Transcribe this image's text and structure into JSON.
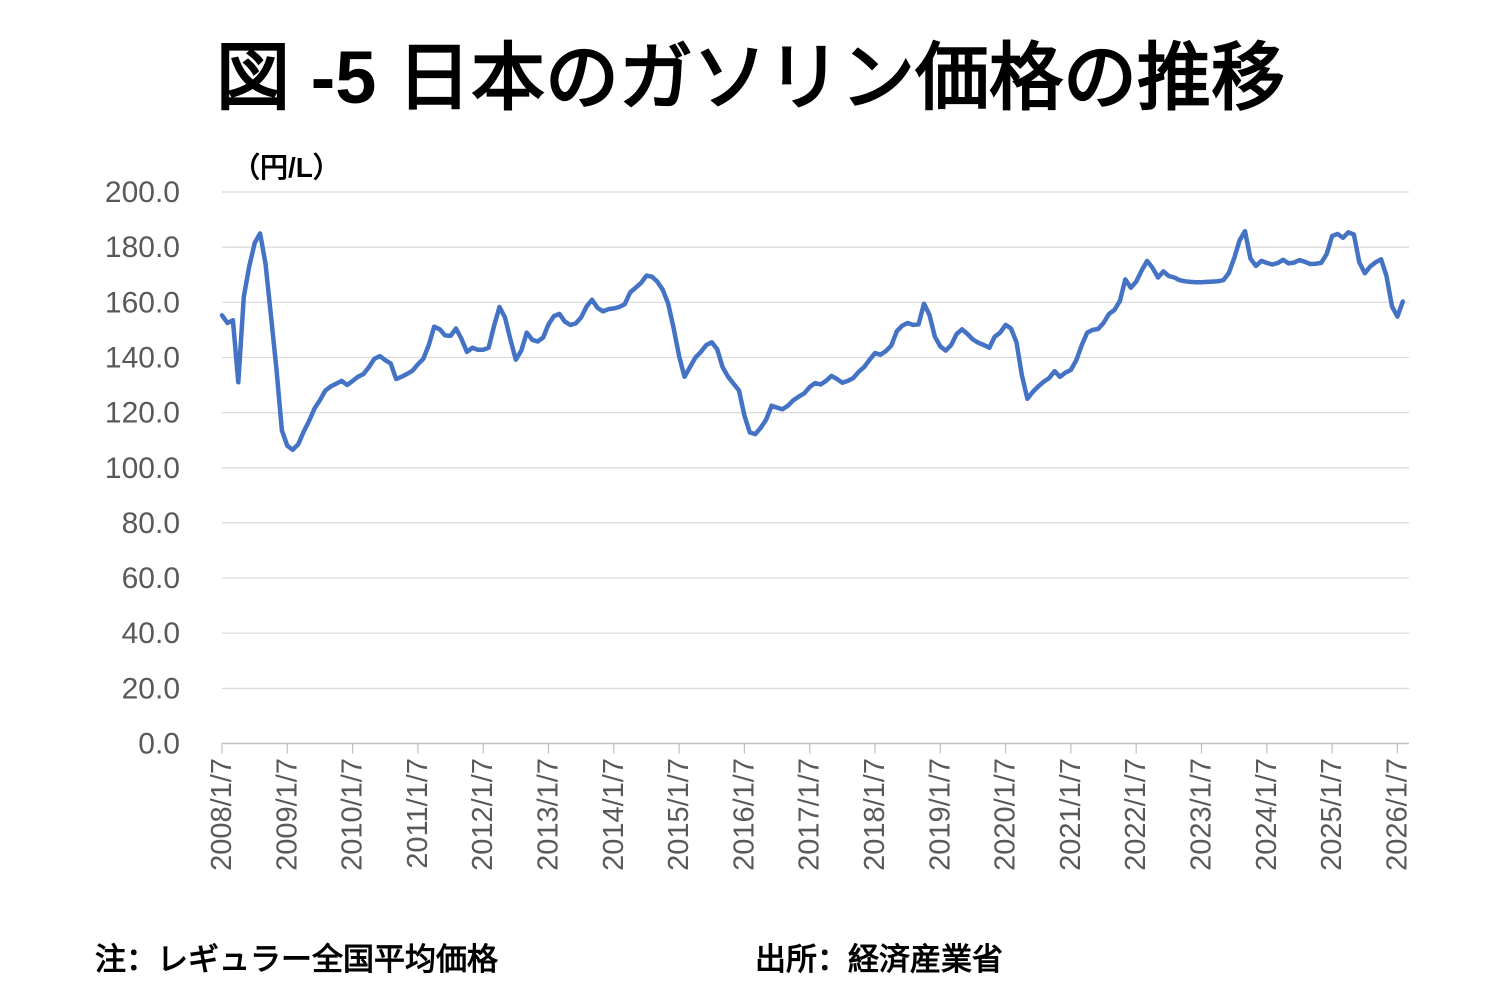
{
  "title": "図 -5 日本のガソリン価格の推移",
  "unit_label": "（円/L）",
  "notes": {
    "note": "注：レギュラー全国平均価格",
    "source": "出所：経済産業省"
  },
  "colors": {
    "line": "#4472C4",
    "gridline": "#D9D9D9",
    "axis": "#BFBFBF",
    "tick_label": "#595959",
    "title_text": "#000000"
  },
  "chart_data": {
    "type": "line",
    "title": "図 -5 日本のガソリン価格の推移",
    "ylabel": "（円/L）",
    "xlabel": "",
    "series_name": "レギュラー全国平均価格",
    "legend": "none",
    "grid": "horizontal",
    "ylim": [
      0,
      200
    ],
    "y_tick_step": 20,
    "y_tick_labels": [
      "200.0",
      "180.0",
      "160.0",
      "140.0",
      "120.0",
      "100.0",
      "80.0",
      "60.0",
      "40.0",
      "20.0",
      "0.0"
    ],
    "x_tick_labels": [
      "2008/1/7",
      "2009/1/7",
      "2010/1/7",
      "2011/1/7",
      "2012/1/7",
      "2013/1/7",
      "2014/1/7",
      "2015/1/7",
      "2016/1/7",
      "2017/1/7",
      "2018/1/7",
      "2019/1/7",
      "2020/1/7",
      "2021/1/7",
      "2022/1/7",
      "2023/1/7",
      "2024/1/7",
      "2025/1/7",
      "2026/1/7"
    ],
    "x_start": "2008-01",
    "x_interval": "monthly (approximated from weekly series)",
    "values": [
      155.3,
      152.5,
      153.5,
      131.0,
      162.0,
      173.0,
      181.5,
      185.0,
      174.0,
      155.0,
      136.0,
      113.5,
      108.0,
      106.5,
      108.5,
      113.0,
      117.0,
      121.5,
      124.5,
      128.0,
      129.5,
      130.5,
      131.5,
      130.0,
      131.5,
      133.0,
      134.0,
      136.5,
      139.5,
      140.5,
      139.0,
      137.8,
      132.2,
      133.0,
      134.0,
      135.2,
      137.5,
      139.5,
      144.5,
      151.2,
      150.2,
      148.0,
      147.8,
      150.5,
      146.8,
      142.0,
      143.5,
      142.8,
      142.8,
      143.5,
      151.5,
      158.3,
      154.5,
      146.5,
      139.2,
      142.5,
      149.0,
      146.4,
      145.8,
      147.2,
      152.0,
      155.0,
      155.8,
      153.0,
      151.8,
      152.3,
      154.5,
      158.5,
      160.9,
      158.0,
      156.7,
      157.5,
      157.8,
      158.3,
      159.3,
      163.5,
      165.3,
      167.0,
      169.7,
      169.3,
      167.5,
      164.5,
      159.5,
      150.5,
      140.5,
      133.0,
      136.5,
      140.0,
      142.0,
      144.5,
      145.5,
      143.0,
      136.5,
      133.0,
      130.5,
      128.0,
      119.0,
      112.8,
      112.2,
      114.5,
      117.5,
      122.5,
      121.8,
      121.2,
      122.5,
      124.5,
      125.8,
      127.0,
      129.3,
      130.7,
      130.2,
      131.5,
      133.3,
      132.2,
      130.8,
      131.5,
      132.5,
      134.8,
      136.5,
      139.2,
      141.6,
      141.0,
      142.3,
      144.3,
      149.5,
      151.5,
      152.5,
      151.8,
      152.0,
      159.5,
      155.5,
      147.5,
      144.0,
      142.5,
      144.5,
      148.5,
      150.2,
      148.5,
      146.5,
      145.3,
      144.5,
      143.5,
      147.5,
      149.0,
      151.8,
      150.5,
      145.5,
      133.5,
      125.0,
      127.5,
      129.5,
      131.2,
      132.5,
      135.0,
      133.0,
      134.5,
      135.5,
      139.0,
      144.5,
      149.0,
      150.0,
      150.3,
      152.5,
      155.8,
      157.2,
      160.5,
      168.3,
      165.3,
      167.5,
      171.5,
      175.0,
      172.5,
      169.0,
      171.2,
      169.5,
      169.0,
      168.0,
      167.6,
      167.4,
      167.3,
      167.3,
      167.4,
      167.5,
      167.6,
      168.0,
      170.5,
      176.0,
      182.5,
      185.8,
      175.8,
      173.2,
      175.0,
      174.3,
      173.7,
      174.2,
      175.4,
      174.1,
      174.4,
      175.3,
      174.7,
      173.9,
      174.0,
      174.3,
      177.5,
      184.0,
      184.8,
      183.4,
      185.4,
      184.6,
      174.5,
      170.5,
      173.0,
      174.5,
      175.6,
      169.5,
      158.5,
      154.8,
      160.3
    ]
  }
}
